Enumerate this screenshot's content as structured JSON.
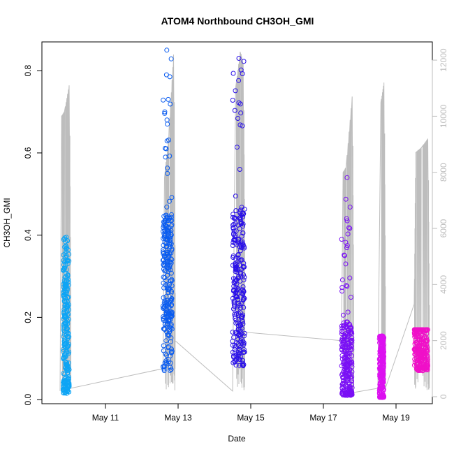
{
  "chart_data": {
    "type": "scatter",
    "title": "ATOM4 Northbound CH3OH_GMI",
    "xlabel": "Date",
    "ylabel": "CH3OH_GMI",
    "xlim": [
      "2018-05-09T06:00",
      "2018-05-20T00:00"
    ],
    "ylim": [
      -0.01,
      0.87
    ],
    "y2lim": [
      -250,
      12650
    ],
    "x_ticks": [
      {
        "date": "2018-05-11",
        "label": "May 11"
      },
      {
        "date": "2018-05-13",
        "label": "May 13"
      },
      {
        "date": "2018-05-15",
        "label": "May 15"
      },
      {
        "date": "2018-05-17",
        "label": "May 17"
      },
      {
        "date": "2018-05-19",
        "label": "May 19"
      }
    ],
    "y_ticks": [
      {
        "value": 0.0,
        "label": "0.0"
      },
      {
        "value": 0.2,
        "label": "0.2"
      },
      {
        "value": 0.4,
        "label": "0.4"
      },
      {
        "value": 0.6,
        "label": "0.6"
      },
      {
        "value": 0.8,
        "label": "0.8"
      }
    ],
    "y2_ticks": [
      {
        "value": 0,
        "label": "0"
      },
      {
        "value": 2000,
        "label": "2000"
      },
      {
        "value": 4000,
        "label": "4000"
      },
      {
        "value": 6000,
        "label": "6000"
      },
      {
        "value": 8000,
        "label": "8000"
      },
      {
        "value": 10000,
        "label": "10000"
      },
      {
        "value": 12000,
        "label": "12000"
      }
    ],
    "grid": false,
    "legend": "none",
    "colors": {
      "altitude_line": "#bdbdbd",
      "flight_1": "#0ea5f5",
      "flight_2": "#0a5cf0",
      "flight_3": "#2a10e8",
      "flight_4": "#7a10f5",
      "flight_5": "#dc10f0",
      "flight_6": "#f010c8"
    },
    "flights": [
      {
        "color_key": "flight_1",
        "start": "2018-05-09T20:00",
        "end": "2018-05-10T00:00",
        "ymin": 0.015,
        "ymax": 0.395,
        "core_low": 0.05,
        "core_high": 0.32,
        "peak": 0.395
      },
      {
        "color_key": "flight_2",
        "start": "2018-05-12T14:00",
        "end": "2018-05-12T20:00",
        "ymin": 0.07,
        "ymax": 0.85,
        "core_low": 0.18,
        "core_high": 0.45,
        "peak": 0.85
      },
      {
        "color_key": "flight_3",
        "start": "2018-05-14T12:00",
        "end": "2018-05-14T20:00",
        "ymin": 0.08,
        "ymax": 0.83,
        "core_low": 0.15,
        "core_high": 0.47,
        "peak": 0.83
      },
      {
        "color_key": "flight_4",
        "start": "2018-05-17T12:00",
        "end": "2018-05-17T19:00",
        "ymin": 0.01,
        "ymax": 0.54,
        "core_low": 0.02,
        "core_high": 0.19,
        "peak": 0.54
      },
      {
        "color_key": "flight_5",
        "start": "2018-05-18T13:00",
        "end": "2018-05-18T16:00",
        "ymin": 0.005,
        "ymax": 0.155,
        "core_low": 0.01,
        "core_high": 0.15,
        "peak": 0.155
      },
      {
        "color_key": "flight_6",
        "start": "2018-05-19T12:00",
        "end": "2018-05-19T21:00",
        "ymin": 0.07,
        "ymax": 0.17,
        "core_low": 0.08,
        "core_high": 0.17,
        "peak": 0.17
      }
    ],
    "altitude_series": [
      [
        "2018-05-09T18:00",
        200
      ],
      [
        "2018-05-09T19:00",
        10000
      ],
      [
        "2018-05-09T21:00",
        10200
      ],
      [
        "2018-05-10T00:00",
        11100
      ],
      [
        "2018-05-10T01:00",
        300
      ],
      [
        "2018-05-12T14:00",
        1000
      ],
      [
        "2018-05-12T15:00",
        7800
      ],
      [
        "2018-05-12T18:00",
        9500
      ],
      [
        "2018-05-12T21:00",
        12200
      ],
      [
        "2018-05-12T22:00",
        2000
      ],
      [
        "2018-05-14T12:00",
        200
      ],
      [
        "2018-05-14T14:00",
        11000
      ],
      [
        "2018-05-14T17:00",
        12300
      ],
      [
        "2018-05-14T19:00",
        11800
      ],
      [
        "2018-05-14T20:00",
        2300
      ],
      [
        "2018-05-17T12:00",
        2000
      ],
      [
        "2018-05-17T13:00",
        8000
      ],
      [
        "2018-05-17T15:00",
        8200
      ],
      [
        "2018-05-17T19:00",
        10700
      ],
      [
        "2018-05-17T20:00",
        150
      ],
      [
        "2018-05-18T12:00",
        300
      ],
      [
        "2018-05-18T14:00",
        10500
      ],
      [
        "2018-05-18T16:00",
        11200
      ],
      [
        "2018-05-18T17:00",
        300
      ],
      [
        "2018-05-19T12:00",
        3300
      ],
      [
        "2018-05-19T13:00",
        8700
      ],
      [
        "2018-05-19T17:00",
        8900
      ],
      [
        "2018-05-19T21:00",
        9200
      ],
      [
        "2018-05-19T22:00",
        300
      ]
    ]
  }
}
